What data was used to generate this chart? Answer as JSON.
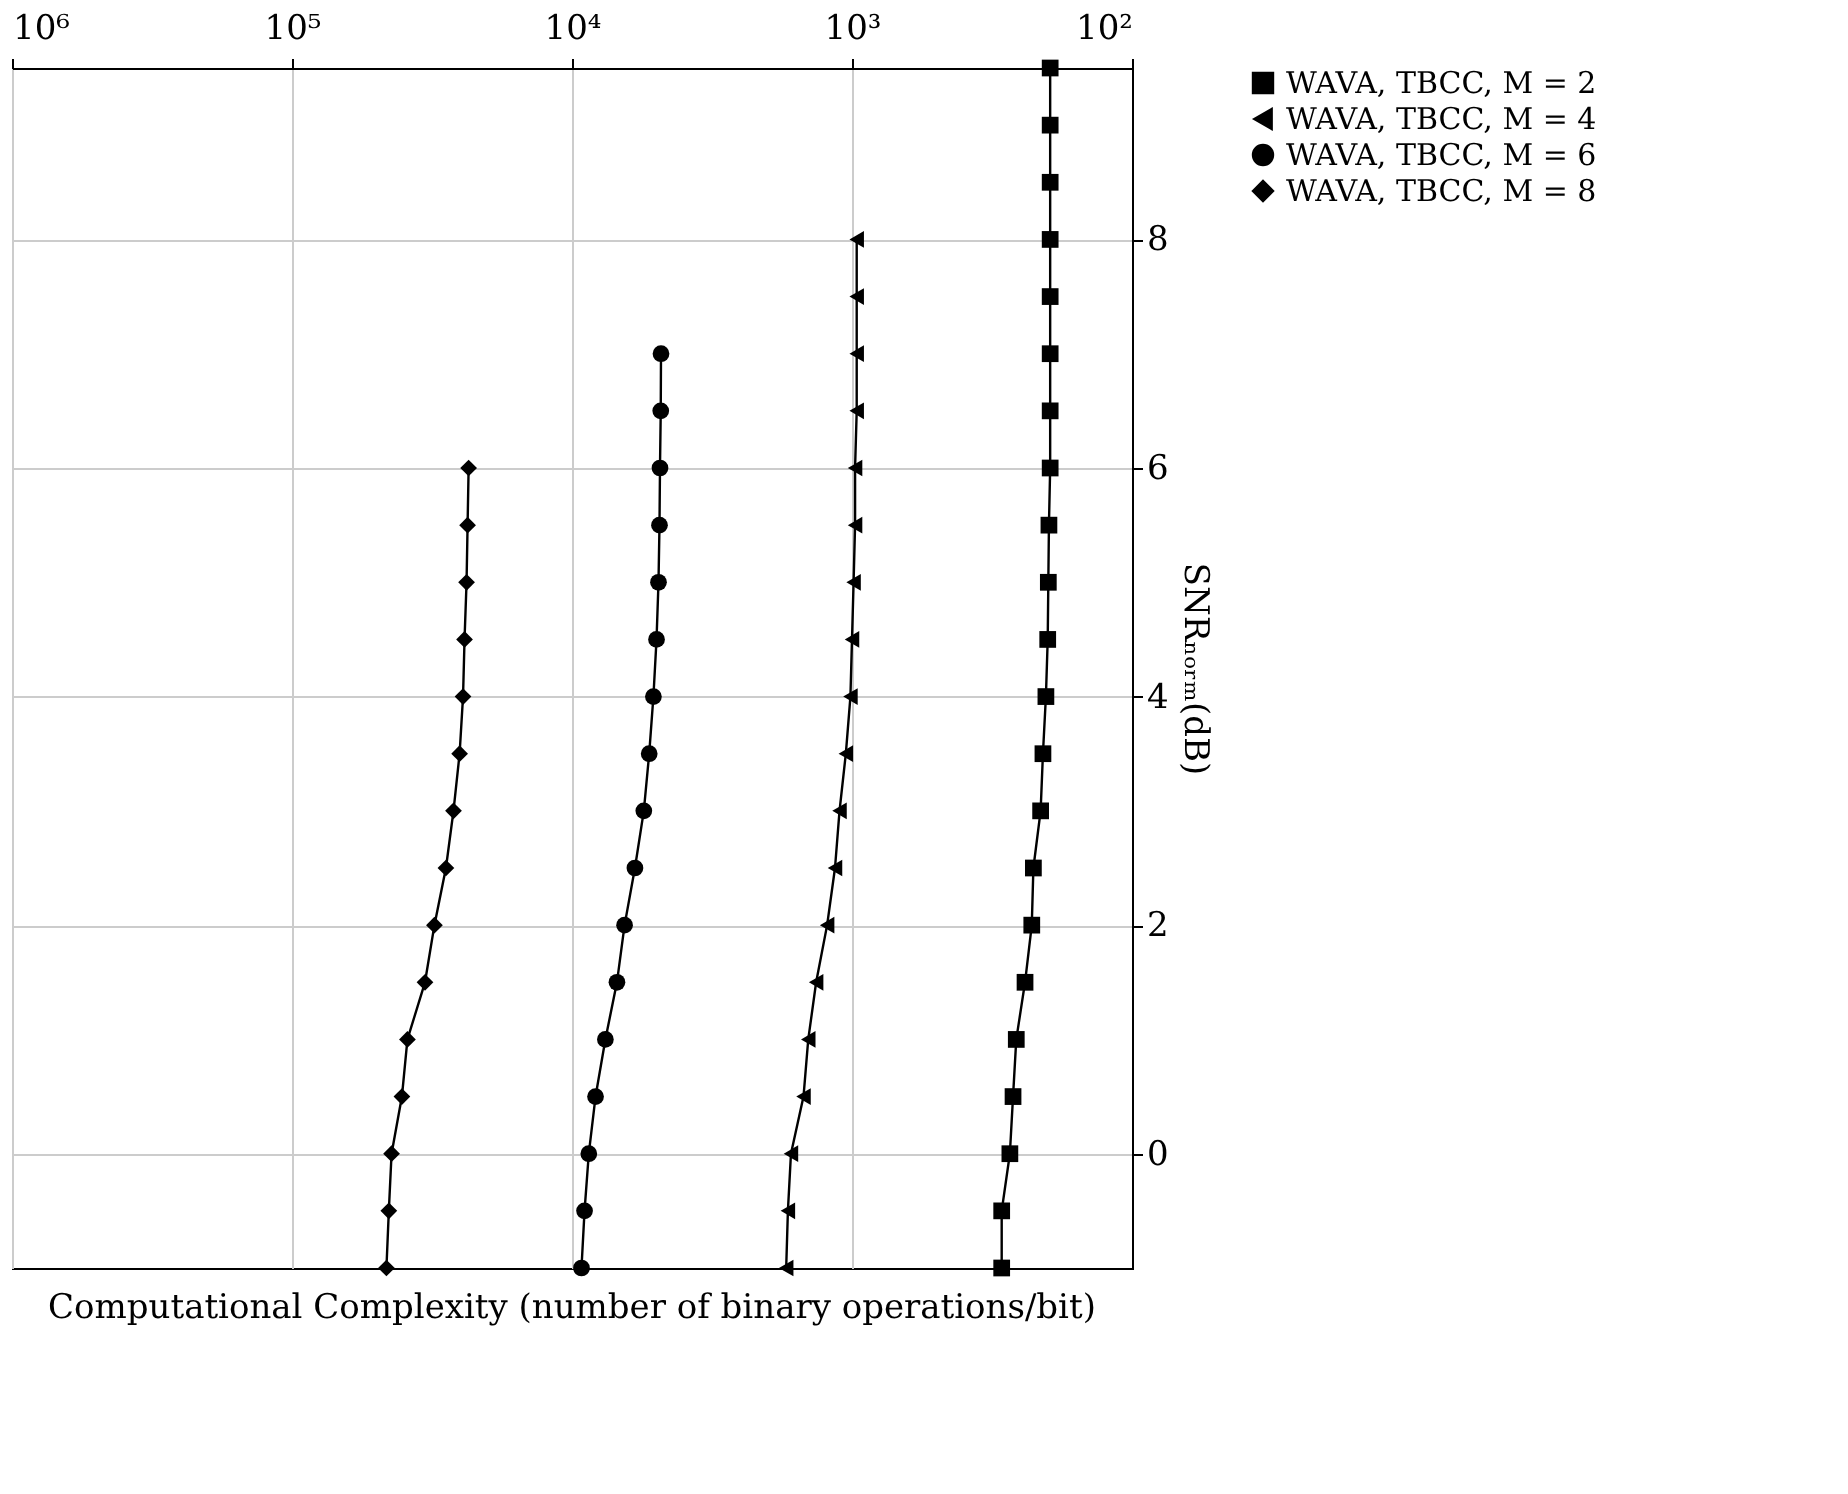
{
  "chart_data": {
    "type": "line",
    "orientation": "horizontal",
    "xlabel": "Computational Complexity (number of binary operations/bit)",
    "ylabel": "SNRₙₒᵣₘ(dB)",
    "log": "x",
    "grid": true,
    "legend": "right",
    "xlim": [
      1000000,
      100
    ],
    "xticks": [
      {
        "value": 1000000,
        "label": "10⁶"
      },
      {
        "value": 100000,
        "label": "10⁵"
      },
      {
        "value": 10000,
        "label": "10⁴"
      },
      {
        "value": 1000,
        "label": "10³"
      },
      {
        "value": 100,
        "label": "10²"
      }
    ],
    "ylim": [
      -1,
      9.5
    ],
    "yticks": [
      0,
      2,
      4,
      6,
      8
    ],
    "series": [
      {
        "name": "WAVA, TBCC, M = 2",
        "color": "#000000",
        "marker": "square",
        "x": [
          -1,
          -0.5,
          0,
          0.5,
          1,
          1.5,
          2,
          2.5,
          3,
          3.5,
          4,
          4.5,
          5,
          5.5,
          6,
          6.5,
          7,
          7.5,
          8,
          8.5,
          9,
          9.5
        ],
        "values": [
          292,
          292,
          273,
          266,
          259,
          241,
          228,
          225,
          212,
          208,
          203,
          200,
          199,
          198,
          196,
          196,
          196,
          196,
          196,
          196,
          196,
          196
        ]
      },
      {
        "name": "WAVA, TBCC, M = 4",
        "color": "#000000",
        "marker": "triangle",
        "x": [
          -1,
          -0.5,
          0,
          0.5,
          1,
          1.5,
          2,
          2.5,
          3,
          3.5,
          4,
          4.5,
          5,
          5.5,
          6,
          6.5,
          7,
          7.5,
          8
        ],
        "values": [
          1718,
          1694,
          1652,
          1490,
          1433,
          1343,
          1227,
          1150,
          1108,
          1052,
          1013,
          1000,
          987,
          975,
          975,
          962,
          962,
          962,
          962
        ]
      },
      {
        "name": "WAVA, TBCC, M = 6",
        "color": "#000000",
        "marker": "circle",
        "x": [
          -1,
          -0.5,
          0,
          0.5,
          1,
          1.5,
          2,
          2.5,
          3,
          3.5,
          4,
          4.5,
          5,
          5.5,
          6,
          6.5,
          7
        ],
        "values": [
          9250,
          9020,
          8710,
          8240,
          7600,
          6910,
          6490,
          5960,
          5540,
          5300,
          5120,
          4990,
          4910,
          4870,
          4850,
          4820,
          4810
        ]
      },
      {
        "name": "WAVA, TBCC, M = 8",
        "color": "#000000",
        "marker": "diamond",
        "x": [
          -1,
          -0.5,
          0,
          0.5,
          1,
          1.5,
          2,
          2.5,
          3,
          3.5,
          4,
          4.5,
          5,
          5.5,
          6
        ],
        "values": [
          46000,
          45100,
          44100,
          40500,
          38700,
          33500,
          31000,
          28200,
          26500,
          25200,
          24500,
          24200,
          23800,
          23600,
          23400
        ]
      }
    ]
  }
}
